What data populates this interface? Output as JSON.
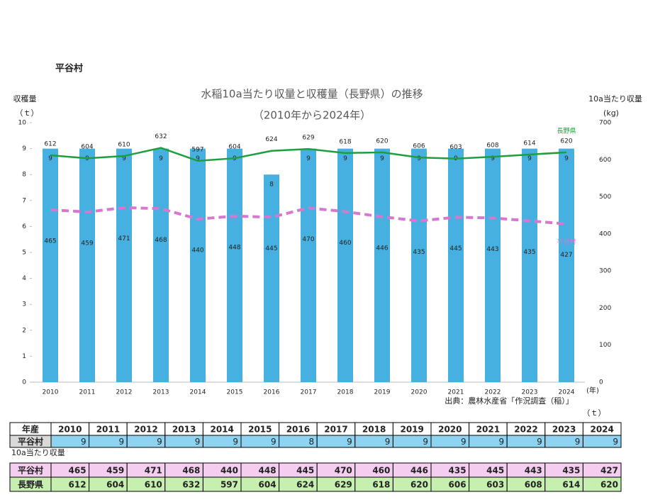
{
  "page_title": "平谷村",
  "chart_data": {
    "type": "bar",
    "title": "水稲10a当たり収量と収穫量（長野県）の推移",
    "subtitle": "（2010年から2024年）",
    "y_label": "収穫量",
    "y_unit": "（ｔ）",
    "y2_label": "10a当たり収量",
    "y2_unit": "(kg)",
    "x_unit": "(年)",
    "source": "出典：農林水産省「作況調査（稲）」",
    "categories": [
      "2010",
      "2011",
      "2012",
      "2013",
      "2014",
      "2015",
      "2016",
      "2017",
      "2018",
      "2019",
      "2020",
      "2021",
      "2022",
      "2023",
      "2024"
    ],
    "series": [
      {
        "type": "bar",
        "color": "#46b1e1",
        "values": [
          9,
          9,
          9,
          9,
          9,
          9,
          8,
          9,
          9,
          9,
          9,
          9,
          9,
          9,
          9
        ]
      },
      {
        "type": "line",
        "name": "平谷村",
        "color": "#d678d0",
        "axis": "y2",
        "dashed": true,
        "values": [
          465,
          459,
          471,
          468,
          440,
          448,
          445,
          470,
          460,
          446,
          435,
          445,
          443,
          435,
          427
        ]
      },
      {
        "type": "line",
        "name": "長野県",
        "color": "#1e9e3e",
        "axis": "y2",
        "dashed": false,
        "values": [
          612,
          604,
          610,
          632,
          597,
          604,
          624,
          629,
          618,
          620,
          606,
          603,
          608,
          614,
          620
        ]
      }
    ],
    "ylim": [
      0,
      10
    ],
    "yticks": [
      0,
      1,
      2,
      3,
      4,
      5,
      6,
      7,
      8,
      9,
      10
    ],
    "y2lim": [
      0,
      700
    ],
    "y2ticks": [
      0,
      100,
      200,
      300,
      400,
      500,
      600,
      700
    ]
  },
  "table": {
    "header": "年産",
    "unit": "（ｔ）",
    "yield_caption": "10a当たり収量"
  }
}
